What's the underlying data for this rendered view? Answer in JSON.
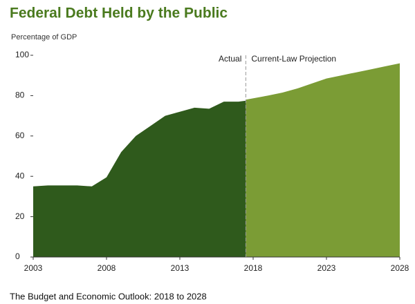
{
  "chart_data": {
    "type": "area",
    "title": "Federal Debt Held by the Public",
    "subtitle": "Percentage of GDP",
    "source": "The Budget and Economic Outlook: 2018 to 2028",
    "xlim": [
      2003,
      2028
    ],
    "xticks": [
      2003,
      2008,
      2013,
      2018,
      2023,
      2028
    ],
    "ylim": [
      0,
      100
    ],
    "yticks": [
      0,
      20,
      40,
      60,
      80,
      100
    ],
    "grid": false,
    "divider": {
      "x": 2017.5,
      "left_label": "Actual",
      "right_label": "Current-Law Projection"
    },
    "series": [
      {
        "name": "Actual",
        "color": "#2f5a1c",
        "x": [
          2003,
          2004,
          2005,
          2006,
          2007,
          2008,
          2009,
          2010,
          2011,
          2012,
          2013,
          2014,
          2015,
          2016,
          2017,
          2017.5
        ],
        "values": [
          35,
          35.5,
          35.5,
          35.5,
          35,
          39.5,
          52,
          60,
          65,
          70,
          72,
          74,
          73.5,
          77,
          77,
          77.5
        ]
      },
      {
        "name": "Current-Law Projection",
        "color": "#7b9c35",
        "x": [
          2017.5,
          2019,
          2020,
          2021,
          2022,
          2023,
          2024,
          2025,
          2026,
          2027,
          2028
        ],
        "values": [
          78,
          80,
          81.5,
          83.5,
          86,
          88.5,
          90,
          91.5,
          93,
          94.5,
          96
        ]
      }
    ]
  }
}
